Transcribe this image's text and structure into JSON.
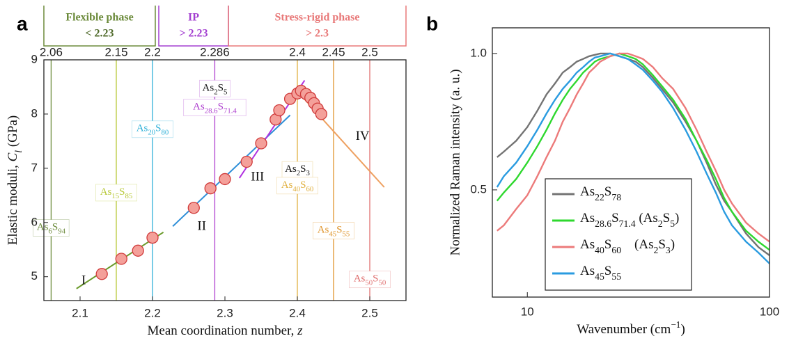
{
  "chart_data": [
    {
      "type": "scatter",
      "panel_label": "a",
      "xlabel": [
        "Mean coordination number, ",
        "z"
      ],
      "ylabel": [
        "Elastic moduli, ",
        "C",
        "l",
        " (GPa)"
      ],
      "xlim": [
        2.05,
        2.55
      ],
      "xticks": [
        2.1,
        2.2,
        2.3,
        2.4,
        2.5
      ],
      "ylim": [
        4.56,
        9
      ],
      "yticks": [
        5,
        6,
        7,
        8,
        9
      ],
      "phases": [
        {
          "name": "Flexible phase",
          "range": "< 2.23",
          "color": "#6b8a3a"
        },
        {
          "name": "IP",
          "range": "> 2.23",
          "color": "#a33fd0"
        },
        {
          "name": "Stress-rigid phase",
          "range": "> 2.3",
          "color": "#e87878"
        }
      ],
      "compositions": [
        {
          "z": 2.06,
          "color": "#6b8a3a",
          "formulas": [
            "As6S94"
          ]
        },
        {
          "z": 2.15,
          "color": "#b8c93a",
          "formulas": [
            "As15S85"
          ]
        },
        {
          "z": 2.2,
          "color": "#2fb0d8",
          "formulas": [
            "As20S80"
          ]
        },
        {
          "z": 2.286,
          "color": "#b044d0",
          "formulas": [
            "As2S5",
            "As28.6S71.4"
          ]
        },
        {
          "z": 2.4,
          "color": "#e0b040",
          "formulas": [
            "As2S3",
            "As40S60"
          ]
        },
        {
          "z": 2.45,
          "color": "#e0962e",
          "formulas": [
            "As45S55"
          ]
        },
        {
          "z": 2.5,
          "color": "#e07070",
          "formulas": [
            "As50S50"
          ]
        }
      ],
      "x": [
        2.13,
        2.157,
        2.18,
        2.2,
        2.257,
        2.28,
        2.3,
        2.33,
        2.35,
        2.37,
        2.375,
        2.39,
        2.4,
        2.405,
        2.412,
        2.418,
        2.423,
        2.428,
        2.433
      ],
      "y": [
        5.05,
        5.33,
        5.48,
        5.72,
        6.27,
        6.63,
        6.8,
        7.12,
        7.46,
        7.9,
        8.07,
        8.28,
        8.38,
        8.43,
        8.37,
        8.3,
        8.2,
        8.1,
        8.0
      ],
      "point_color": "#f4a09a",
      "point_edge": "#d03a3a",
      "fits": [
        {
          "label": "I",
          "color": "#6a9a2a",
          "label_color": "#6a9a2a",
          "x": [
            2.095,
            2.215
          ],
          "y": [
            4.78,
            5.82
          ]
        },
        {
          "label": "II",
          "color": "#2f8fd8",
          "label_color": "#7a2fb0",
          "x": [
            2.228,
            2.39
          ],
          "y": [
            5.93,
            7.98
          ]
        },
        {
          "label": "III",
          "color": "#b030e0",
          "label_color": "#b030e0",
          "x": [
            2.32,
            2.41
          ],
          "y": [
            6.82,
            8.62
          ]
        },
        {
          "label": "IV",
          "color": "#eea060",
          "label_color": "#e0962e",
          "x": [
            2.4,
            2.52
          ],
          "y": [
            8.42,
            6.65
          ]
        }
      ]
    },
    {
      "type": "line",
      "panel_label": "b",
      "xlabel": [
        "Wavenumber  (cm",
        "−1",
        ")"
      ],
      "ylabel": "Normalized Raman intensity (a. u.)",
      "xscale": "log",
      "xlim": [
        7.17,
        100
      ],
      "xticks": [
        10,
        100
      ],
      "ylim": [
        0.107,
        1.094
      ],
      "yticks": [
        {
          "value": 0.5,
          "label": "0.5"
        },
        {
          "value": 1,
          "label": "1.0"
        }
      ],
      "legend": "lower left",
      "x": [
        7.5,
        8,
        9,
        10,
        11,
        12,
        13,
        14,
        15,
        16,
        17,
        18,
        19,
        20,
        22,
        24,
        26,
        28,
        30,
        33,
        36,
        40,
        45,
        50,
        55,
        60,
        65,
        70,
        80,
        90,
        100
      ],
      "series": [
        {
          "name": "As22S78",
          "color": "#737373",
          "values": [
            0.62,
            0.64,
            0.68,
            0.73,
            0.79,
            0.85,
            0.89,
            0.93,
            0.95,
            0.97,
            0.98,
            0.99,
            0.995,
            1.0,
            1.0,
            0.99,
            0.98,
            0.97,
            0.95,
            0.91,
            0.87,
            0.82,
            0.75,
            0.68,
            0.6,
            0.52,
            0.46,
            0.42,
            0.34,
            0.29,
            0.26
          ]
        },
        {
          "name": "As28.6S71.4 (As2S5)",
          "color": "#2ed82e",
          "values": [
            0.46,
            0.49,
            0.54,
            0.6,
            0.66,
            0.72,
            0.78,
            0.83,
            0.87,
            0.9,
            0.93,
            0.95,
            0.97,
            0.98,
            0.99,
            1.0,
            0.99,
            0.98,
            0.96,
            0.92,
            0.88,
            0.83,
            0.76,
            0.68,
            0.61,
            0.54,
            0.47,
            0.42,
            0.35,
            0.31,
            0.28
          ]
        },
        {
          "name": "As40S60    (As2S3)",
          "color": "#ec7a7a",
          "values": [
            0.35,
            0.37,
            0.43,
            0.48,
            0.55,
            0.62,
            0.68,
            0.75,
            0.8,
            0.85,
            0.89,
            0.93,
            0.95,
            0.97,
            0.99,
            1.0,
            1.0,
            0.99,
            0.98,
            0.95,
            0.91,
            0.87,
            0.8,
            0.72,
            0.64,
            0.57,
            0.5,
            0.45,
            0.38,
            0.34,
            0.31
          ]
        },
        {
          "name": "As45S55",
          "color": "#2a9be0",
          "values": [
            0.51,
            0.55,
            0.6,
            0.66,
            0.72,
            0.78,
            0.83,
            0.87,
            0.9,
            0.93,
            0.95,
            0.97,
            0.985,
            0.99,
            1.0,
            0.99,
            0.98,
            0.96,
            0.94,
            0.9,
            0.86,
            0.8,
            0.72,
            0.64,
            0.56,
            0.49,
            0.42,
            0.37,
            0.31,
            0.27,
            0.23
          ]
        }
      ]
    }
  ]
}
